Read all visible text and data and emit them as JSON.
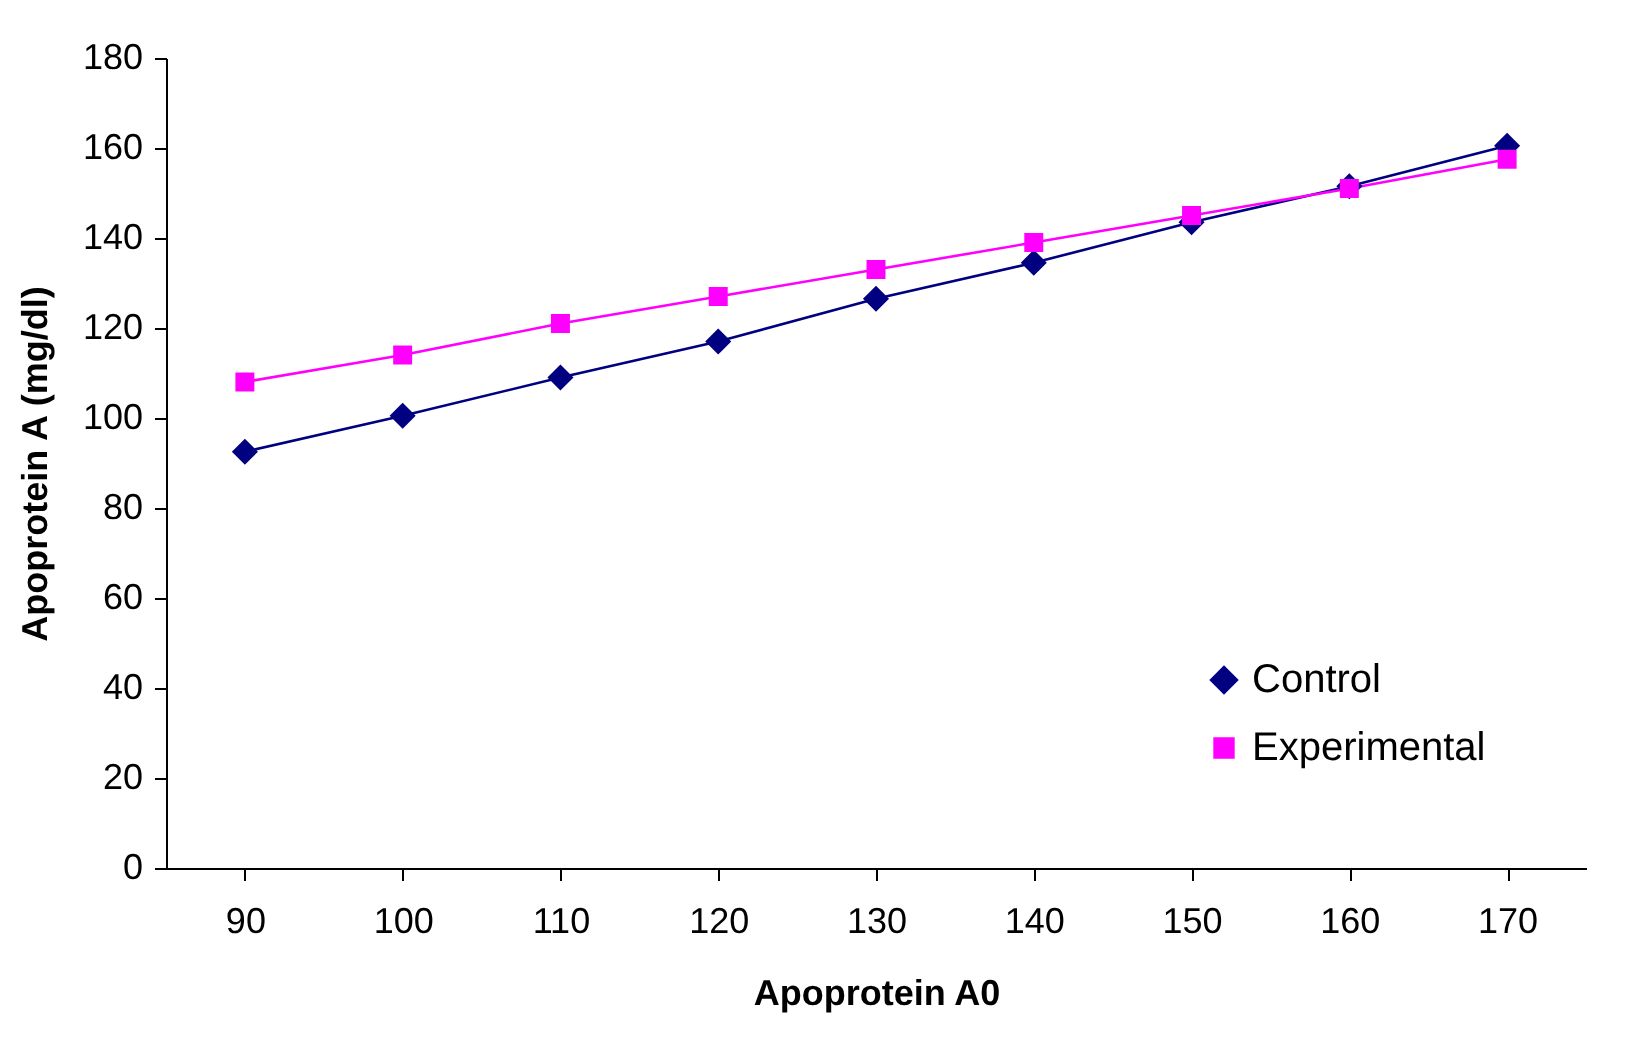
{
  "chart_data": {
    "type": "line",
    "xlabel": "Apoprotein A0",
    "ylabel": "Apoprotein A (mg/dl)",
    "categories": [
      "90",
      "100",
      "110",
      "120",
      "130",
      "140",
      "150",
      "160",
      "170"
    ],
    "series": [
      {
        "name": "Control",
        "color": "#000080",
        "marker": "diamond",
        "values": [
          92.5,
          100.5,
          109,
          117,
          126.5,
          134.5,
          143.5,
          151.5,
          160.5
        ]
      },
      {
        "name": "Experimental",
        "color": "#ff00ff",
        "marker": "square",
        "values": [
          108,
          114,
          121,
          127,
          133,
          139,
          145,
          151,
          157.5
        ]
      }
    ],
    "ylim": [
      0,
      180
    ],
    "yticks": [
      0,
      20,
      40,
      60,
      80,
      100,
      120,
      140,
      160,
      180
    ],
    "grid": false,
    "legend": "bottom right",
    "line_style": "solid"
  }
}
